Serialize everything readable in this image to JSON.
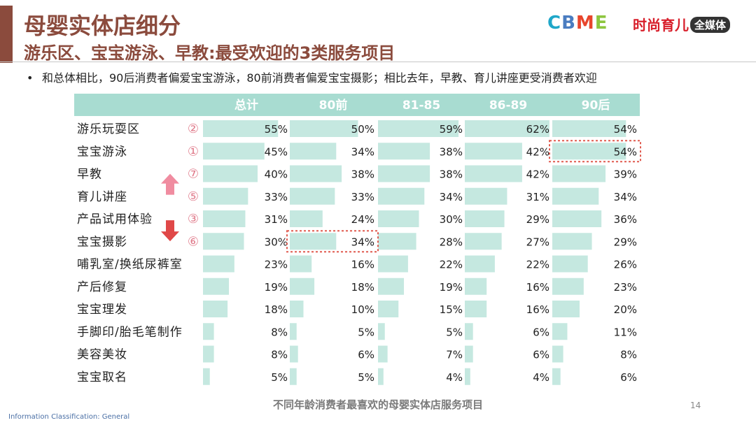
{
  "header": {
    "title": "母婴实体店细分",
    "subtitle": "游乐区、宝宝游泳、早教:最受欢迎的3类服务项目"
  },
  "logos": {
    "cbme_letters": [
      "C",
      "B",
      "M",
      "E"
    ],
    "cbme_colors": [
      "#1fa7c9",
      "#4a7cc0",
      "#e8452c",
      "#8dc63f"
    ],
    "fashion_text": "时尚育儿",
    "fashion_pill": "全媒体"
  },
  "bullet": {
    "symbol": "•",
    "text": "和总体相比，90后消费者偏爱宝宝游泳，80前消费者偏爱宝宝摄影；相比去年，早教、育儿讲座更受消费者欢迎"
  },
  "chart_data": {
    "type": "bar",
    "orientation": "horizontal",
    "header_color": "#a8dcd1",
    "bar_color": "#c5e8e0",
    "highlight_color": "#e05a4f",
    "up_arrow_color": "#f08ca0",
    "down_arrow_color": "#e04848",
    "categories": [
      "游乐玩耍区",
      "宝宝游泳",
      "早教",
      "育儿讲座",
      "产品试用体验",
      "宝宝摄影",
      "哺乳室/换纸尿裤室",
      "产后修复",
      "宝宝理发",
      "手脚印/胎毛笔制作",
      "美容美妆",
      "宝宝取名"
    ],
    "ranks": [
      "②",
      "①",
      "⑦",
      "⑤",
      "③",
      "⑥",
      "",
      "",
      "",
      "",
      "",
      ""
    ],
    "trend_arrows": [
      {
        "type": "up",
        "between_rows": [
          2,
          3
        ]
      },
      {
        "type": "down",
        "between_rows": [
          4,
          5
        ]
      }
    ],
    "series": [
      {
        "name": "总计",
        "values": [
          55,
          45,
          40,
          33,
          31,
          30,
          23,
          19,
          18,
          8,
          8,
          5
        ]
      },
      {
        "name": "80前",
        "values": [
          50,
          34,
          38,
          33,
          24,
          34,
          16,
          18,
          10,
          5,
          6,
          5
        ]
      },
      {
        "name": "81-85",
        "values": [
          59,
          38,
          38,
          34,
          30,
          28,
          22,
          19,
          15,
          5,
          7,
          4
        ]
      },
      {
        "name": "86-89",
        "values": [
          62,
          42,
          42,
          31,
          29,
          27,
          22,
          16,
          16,
          6,
          6,
          4
        ]
      },
      {
        "name": "90后",
        "values": [
          54,
          54,
          39,
          34,
          36,
          29,
          26,
          23,
          20,
          11,
          8,
          6
        ]
      }
    ],
    "value_suffix": "%",
    "highlights": [
      {
        "series": 4,
        "row": 1
      },
      {
        "series": 1,
        "row": 5
      }
    ],
    "xlim": [
      0,
      100
    ],
    "grid": false
  },
  "footer": {
    "caption": "不同年龄消费者最喜欢的母婴实体店服务项目",
    "page_number": "14",
    "classification": "Information Classification: General"
  }
}
